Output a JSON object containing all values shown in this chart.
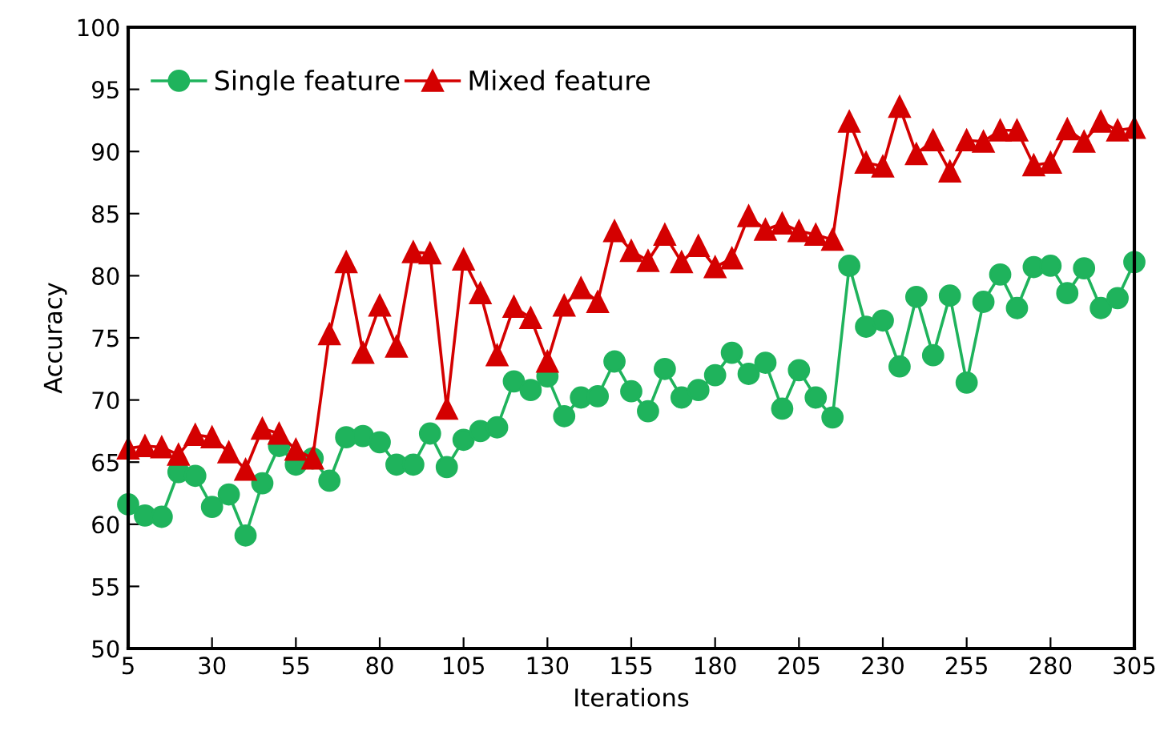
{
  "chart_data": {
    "type": "line",
    "xlabel": "Iterations",
    "ylabel": "Accuracy",
    "x": [
      5,
      10,
      15,
      20,
      25,
      30,
      35,
      40,
      45,
      50,
      55,
      60,
      65,
      70,
      75,
      80,
      85,
      90,
      95,
      100,
      105,
      110,
      115,
      120,
      125,
      130,
      135,
      140,
      145,
      150,
      155,
      160,
      165,
      170,
      175,
      180,
      185,
      190,
      195,
      200,
      205,
      210,
      215,
      220,
      225,
      230,
      235,
      240,
      245,
      250,
      255,
      260,
      265,
      270,
      275,
      280,
      285,
      290,
      295,
      300,
      305
    ],
    "series": [
      {
        "name": "Single feature",
        "color": "#1fb35c",
        "marker": "circle",
        "values": [
          61.6,
          60.7,
          60.6,
          64.2,
          63.9,
          61.4,
          62.4,
          59.1,
          63.3,
          66.3,
          64.8,
          65.3,
          63.5,
          67.0,
          67.1,
          66.6,
          64.8,
          64.8,
          67.3,
          64.6,
          66.8,
          67.5,
          67.8,
          71.5,
          70.8,
          71.9,
          68.7,
          70.2,
          70.3,
          73.1,
          70.7,
          69.1,
          72.5,
          70.2,
          70.8,
          72.0,
          73.8,
          72.1,
          73.0,
          69.3,
          72.4,
          70.2,
          68.6,
          80.8,
          75.9,
          76.4,
          72.7,
          78.3,
          73.6,
          78.4,
          71.4,
          77.9,
          80.1,
          77.4,
          80.7,
          80.8,
          78.6,
          80.6,
          77.4,
          78.2,
          81.1
        ]
      },
      {
        "name": "Mixed feature",
        "color": "#d40000",
        "marker": "triangle",
        "values": [
          66.1,
          66.3,
          66.2,
          65.6,
          67.2,
          67.0,
          65.8,
          64.4,
          67.7,
          67.3,
          66.0,
          65.3,
          75.3,
          81.1,
          73.8,
          77.6,
          74.3,
          81.9,
          81.8,
          69.3,
          81.3,
          78.6,
          73.6,
          77.5,
          76.6,
          73.1,
          77.6,
          79.0,
          77.9,
          83.6,
          82.0,
          81.2,
          83.3,
          81.1,
          82.4,
          80.7,
          81.4,
          84.8,
          83.7,
          84.2,
          83.6,
          83.3,
          82.9,
          92.4,
          89.1,
          88.8,
          93.6,
          89.8,
          90.9,
          88.4,
          90.9,
          90.8,
          91.7,
          91.7,
          88.9,
          89.1,
          91.8,
          90.8,
          92.4,
          91.7,
          91.9
        ]
      }
    ],
    "xlim": [
      5,
      305
    ],
    "xticks": [
      5,
      30,
      55,
      80,
      105,
      130,
      155,
      180,
      205,
      230,
      255,
      280,
      305
    ],
    "ylim": [
      50,
      100
    ],
    "yticks": [
      50,
      55,
      60,
      65,
      70,
      75,
      80,
      85,
      90,
      95,
      100
    ],
    "grid": false,
    "legend": "top left",
    "line_style": "solid"
  }
}
